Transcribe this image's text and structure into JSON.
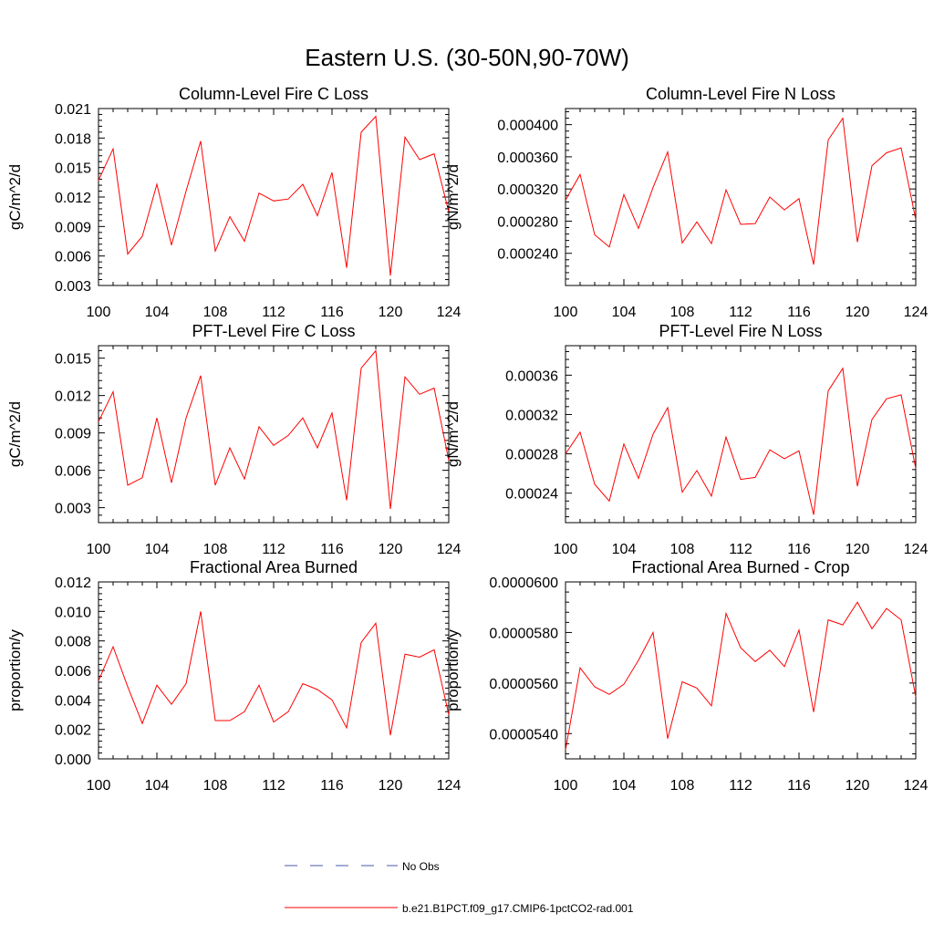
{
  "figure": {
    "title": "Eastern U.S. (30-50N,90-70W)"
  },
  "legend": {
    "items": [
      {
        "label": "No Obs",
        "color": "#4a5aa8",
        "style": "dashed"
      },
      {
        "label": "b.e21.B1PCT.f09_g17.CMIP6-1pctCO2-rad.001",
        "color": "#ff0000",
        "style": "solid"
      }
    ]
  },
  "chart_data": [
    {
      "type": "line",
      "title": "Column-Level Fire C Loss",
      "ylabel": "gC/m^2/d",
      "xlim": [
        100,
        124
      ],
      "ylim": [
        0.003,
        0.021
      ],
      "xticks": [
        "100",
        "104",
        "108",
        "112",
        "116",
        "120",
        "124"
      ],
      "yticks": [
        "0.003",
        "0.006",
        "0.009",
        "0.012",
        "0.015",
        "0.018",
        "0.021"
      ],
      "series": [
        {
          "color": "#ff0000",
          "x": [
            100,
            101,
            102,
            103,
            104,
            105,
            106,
            107,
            108,
            109,
            110,
            111,
            112,
            113,
            114,
            115,
            116,
            117,
            118,
            119,
            120,
            121,
            122,
            123,
            124
          ],
          "values": [
            0.0137,
            0.0169,
            0.0062,
            0.008,
            0.0133,
            0.0071,
            0.0126,
            0.0177,
            0.0065,
            0.01,
            0.0075,
            0.0124,
            0.0116,
            0.0118,
            0.0133,
            0.0101,
            0.0145,
            0.0048,
            0.0186,
            0.0202,
            0.004,
            0.0181,
            0.0158,
            0.0164,
            0.0105
          ]
        }
      ]
    },
    {
      "type": "line",
      "title": "Column-Level Fire N Loss",
      "ylabel": "gN/m^2/d",
      "xlim": [
        100,
        124
      ],
      "ylim": [
        0.0002,
        0.00042
      ],
      "xticks": [
        "100",
        "104",
        "108",
        "112",
        "116",
        "120",
        "124"
      ],
      "yticks": [
        "0.000240",
        "0.000280",
        "0.000320",
        "0.000360",
        "0.000400"
      ],
      "series": [
        {
          "color": "#ff0000",
          "x": [
            100,
            101,
            102,
            103,
            104,
            105,
            106,
            107,
            108,
            109,
            110,
            111,
            112,
            113,
            114,
            115,
            116,
            117,
            118,
            119,
            120,
            121,
            122,
            123,
            124
          ],
          "values": [
            0.000306,
            0.000338,
            0.000263,
            0.000248,
            0.000313,
            0.000271,
            0.000322,
            0.000366,
            0.000253,
            0.000279,
            0.000252,
            0.000319,
            0.000276,
            0.000277,
            0.00031,
            0.000294,
            0.000308,
            0.000226,
            0.000381,
            0.000408,
            0.000254,
            0.000349,
            0.000365,
            0.000371,
            0.000282
          ]
        }
      ]
    },
    {
      "type": "line",
      "title": "PFT-Level Fire C Loss",
      "ylabel": "gC/m^2/d",
      "xlim": [
        100,
        124
      ],
      "ylim": [
        0.0018,
        0.016
      ],
      "xticks": [
        "100",
        "104",
        "108",
        "112",
        "116",
        "120",
        "124"
      ],
      "yticks": [
        "0.003",
        "0.006",
        "0.009",
        "0.012",
        "0.015"
      ],
      "series": [
        {
          "color": "#ff0000",
          "x": [
            100,
            101,
            102,
            103,
            104,
            105,
            106,
            107,
            108,
            109,
            110,
            111,
            112,
            113,
            114,
            115,
            116,
            117,
            118,
            119,
            120,
            121,
            122,
            123,
            124
          ],
          "values": [
            0.0099,
            0.0123,
            0.0048,
            0.0054,
            0.0102,
            0.005,
            0.0102,
            0.0136,
            0.0048,
            0.0078,
            0.0053,
            0.0095,
            0.008,
            0.0088,
            0.0102,
            0.0078,
            0.0106,
            0.0036,
            0.0142,
            0.0156,
            0.0029,
            0.0135,
            0.0121,
            0.0126,
            0.0068
          ]
        }
      ]
    },
    {
      "type": "line",
      "title": "PFT-Level Fire N Loss",
      "ylabel": "gN/m^2/d",
      "xlim": [
        100,
        124
      ],
      "ylim": [
        0.00021,
        0.00039
      ],
      "xticks": [
        "100",
        "104",
        "108",
        "112",
        "116",
        "120",
        "124"
      ],
      "yticks": [
        "0.00024",
        "0.00028",
        "0.00032",
        "0.00036"
      ],
      "series": [
        {
          "color": "#ff0000",
          "x": [
            100,
            101,
            102,
            103,
            104,
            105,
            106,
            107,
            108,
            109,
            110,
            111,
            112,
            113,
            114,
            115,
            116,
            117,
            118,
            119,
            120,
            121,
            122,
            123,
            124
          ],
          "values": [
            0.00028,
            0.000302,
            0.000249,
            0.000232,
            0.00029,
            0.000255,
            0.0003,
            0.000327,
            0.000241,
            0.000263,
            0.000237,
            0.000297,
            0.000254,
            0.000256,
            0.000284,
            0.000275,
            0.000283,
            0.000218,
            0.000344,
            0.000367,
            0.000247,
            0.000315,
            0.000336,
            0.00034,
            0.000265
          ]
        }
      ]
    },
    {
      "type": "line",
      "title": "Fractional Area Burned",
      "ylabel": "proportion/y",
      "xlim": [
        100,
        124
      ],
      "ylim": [
        0.0,
        0.012
      ],
      "xticks": [
        "100",
        "104",
        "108",
        "112",
        "116",
        "120",
        "124"
      ],
      "yticks": [
        "0.000",
        "0.002",
        "0.004",
        "0.006",
        "0.008",
        "0.010",
        "0.012"
      ],
      "series": [
        {
          "color": "#ff0000",
          "x": [
            100,
            101,
            102,
            103,
            104,
            105,
            106,
            107,
            108,
            109,
            110,
            111,
            112,
            113,
            114,
            115,
            116,
            117,
            118,
            119,
            120,
            121,
            122,
            123,
            124
          ],
          "values": [
            0.0053,
            0.0076,
            0.0049,
            0.0024,
            0.005,
            0.0037,
            0.0051,
            0.01,
            0.0026,
            0.0026,
            0.0032,
            0.005,
            0.0025,
            0.0032,
            0.0051,
            0.0047,
            0.004,
            0.0021,
            0.0079,
            0.0092,
            0.0016,
            0.0071,
            0.0069,
            0.0074,
            0.003
          ]
        }
      ]
    },
    {
      "type": "line",
      "title": "Fractional Area Burned - Crop",
      "ylabel": "proportion/y",
      "xlim": [
        100,
        124
      ],
      "ylim": [
        5.3e-05,
        6e-05
      ],
      "xticks": [
        "100",
        "104",
        "108",
        "112",
        "116",
        "120",
        "124"
      ],
      "yticks": [
        "0.0000540",
        "0.0000560",
        "0.0000580",
        "0.0000600"
      ],
      "series": [
        {
          "color": "#ff0000",
          "x": [
            100,
            101,
            102,
            103,
            104,
            105,
            106,
            107,
            108,
            109,
            110,
            111,
            112,
            113,
            114,
            115,
            116,
            117,
            118,
            119,
            120,
            121,
            122,
            123,
            124
          ],
          "values": [
            5.335e-05,
            5.66e-05,
            5.585e-05,
            5.555e-05,
            5.595e-05,
            5.69e-05,
            5.8e-05,
            5.38e-05,
            5.605e-05,
            5.58e-05,
            5.51e-05,
            5.875e-05,
            5.74e-05,
            5.685e-05,
            5.73e-05,
            5.665e-05,
            5.81e-05,
            5.485e-05,
            5.85e-05,
            5.83e-05,
            5.92e-05,
            5.815e-05,
            5.895e-05,
            5.85e-05,
            5.545e-05
          ]
        }
      ]
    }
  ]
}
